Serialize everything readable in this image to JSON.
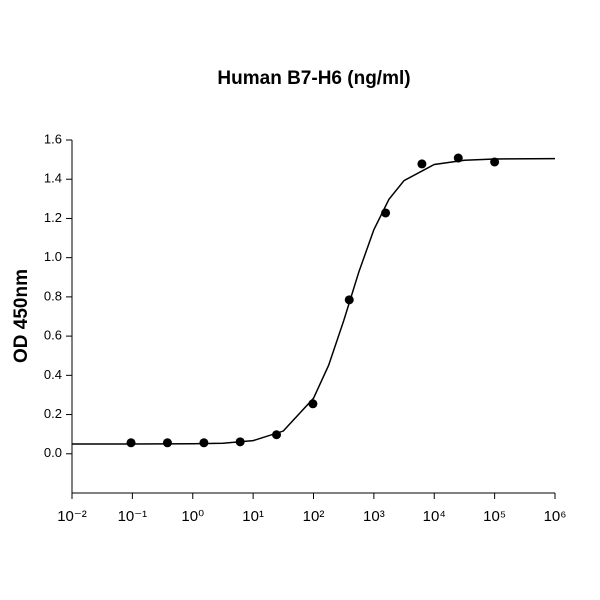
{
  "chart_data": {
    "type": "scatter",
    "title": "Human B7-H6 (ng/ml)",
    "y_label": "OD 450nm",
    "x_scale": "log",
    "xlim": [
      0.01,
      1000000
    ],
    "xticks": [
      {
        "value": 0.01,
        "label": "10⁻²"
      },
      {
        "value": 0.1,
        "label": "10⁻¹"
      },
      {
        "value": 1,
        "label": "10⁰"
      },
      {
        "value": 10,
        "label": "10¹"
      },
      {
        "value": 100,
        "label": "10²"
      },
      {
        "value": 1000,
        "label": "10³"
      },
      {
        "value": 10000,
        "label": "10⁴"
      },
      {
        "value": 100000,
        "label": "10⁵"
      },
      {
        "value": 1000000,
        "label": "10⁶"
      }
    ],
    "ylim": [
      -0.2,
      1.6
    ],
    "yticks": [
      {
        "value": 0,
        "label": "0.0"
      },
      0.2,
      0.4,
      0.6,
      0.8,
      {
        "value": 1,
        "label": "1.0"
      },
      1.2,
      1.4,
      1.6
    ],
    "series": [
      {
        "style": "points",
        "color": "#000000",
        "x": [
          0.095,
          0.381,
          1.53,
          6.1,
          24.4,
          97.7,
          391,
          1563,
          6250,
          25000,
          100000
        ],
        "values": [
          0.056,
          0.056,
          0.056,
          0.061,
          0.097,
          0.255,
          0.785,
          1.228,
          1.478,
          1.508,
          1.488
        ]
      },
      {
        "style": "line",
        "color": "#000000",
        "x": [
          0.01,
          0.1,
          1,
          3.16,
          10,
          31.6,
          100,
          178,
          316,
          562,
          1000,
          1778,
          3162,
          10000,
          31623,
          100000,
          1000000
        ],
        "values": [
          0.05,
          0.05,
          0.051,
          0.054,
          0.067,
          0.116,
          0.283,
          0.451,
          0.678,
          0.926,
          1.143,
          1.298,
          1.393,
          1.475,
          1.497,
          1.503,
          1.505
        ]
      }
    ]
  }
}
